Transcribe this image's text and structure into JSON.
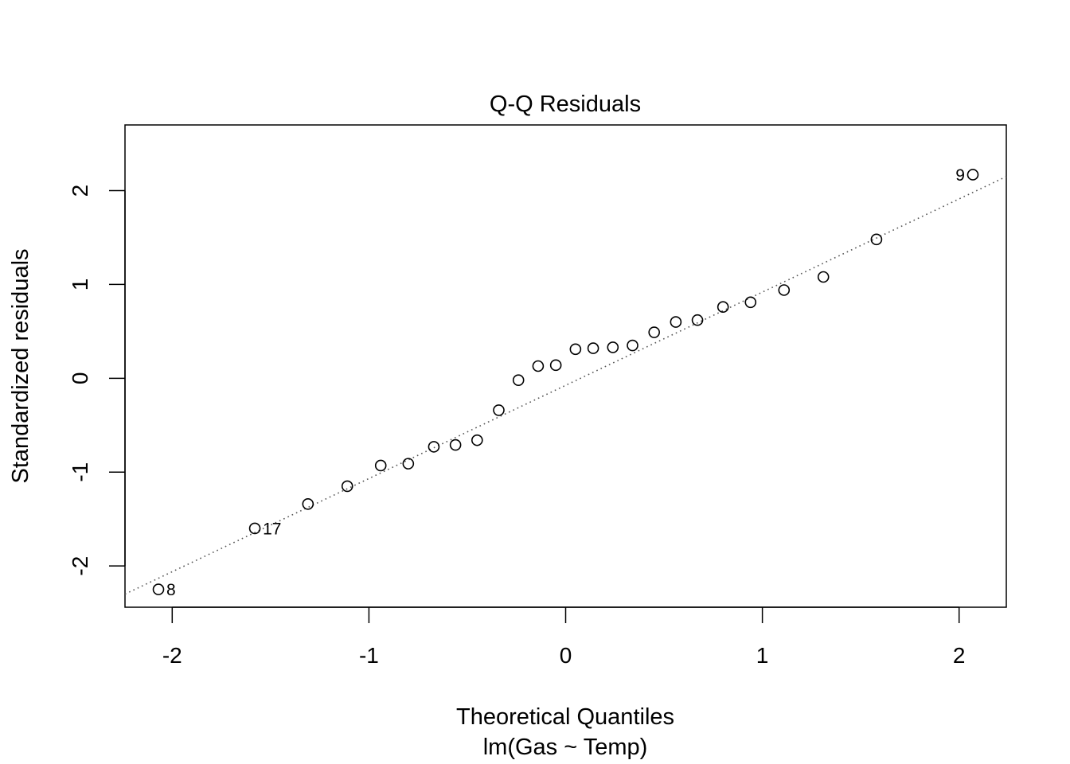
{
  "chart_data": {
    "type": "scatter",
    "title": "Q-Q Residuals",
    "xlabel": "Theoretical Quantiles",
    "subtitle": "lm(Gas ~ Temp)",
    "ylabel": "Standardized residuals",
    "xlim": [
      -2.24,
      2.24
    ],
    "ylim": [
      -2.44,
      2.7
    ],
    "x_ticks": [
      -2,
      -1,
      0,
      1,
      2
    ],
    "x_tick_labels": [
      "-2",
      "-1",
      "0",
      "1",
      "2"
    ],
    "y_ticks": [
      -2,
      -1,
      0,
      1,
      2
    ],
    "y_tick_labels": [
      "-2",
      "-1",
      "0",
      "1",
      "2"
    ],
    "grid": false,
    "reference_line": {
      "style": "dotted",
      "color": "#555555",
      "x": [
        -2.24,
        2.24
      ],
      "y": [
        -2.3,
        2.15
      ]
    },
    "series": [
      {
        "marker": "open-circle",
        "color": "#000000",
        "points": [
          {
            "x": -2.07,
            "y": -2.25,
            "label": "8"
          },
          {
            "x": -1.58,
            "y": -1.6,
            "label": "17"
          },
          {
            "x": -1.31,
            "y": -1.34
          },
          {
            "x": -1.11,
            "y": -1.15
          },
          {
            "x": -0.94,
            "y": -0.93
          },
          {
            "x": -0.8,
            "y": -0.91
          },
          {
            "x": -0.67,
            "y": -0.73
          },
          {
            "x": -0.56,
            "y": -0.71
          },
          {
            "x": -0.45,
            "y": -0.66
          },
          {
            "x": -0.34,
            "y": -0.34
          },
          {
            "x": -0.24,
            "y": -0.02
          },
          {
            "x": -0.14,
            "y": 0.13
          },
          {
            "x": -0.05,
            "y": 0.14
          },
          {
            "x": 0.05,
            "y": 0.31
          },
          {
            "x": 0.14,
            "y": 0.32
          },
          {
            "x": 0.24,
            "y": 0.33
          },
          {
            "x": 0.34,
            "y": 0.35
          },
          {
            "x": 0.45,
            "y": 0.49
          },
          {
            "x": 0.56,
            "y": 0.6
          },
          {
            "x": 0.67,
            "y": 0.62
          },
          {
            "x": 0.8,
            "y": 0.76
          },
          {
            "x": 0.94,
            "y": 0.81
          },
          {
            "x": 1.11,
            "y": 0.94
          },
          {
            "x": 1.31,
            "y": 1.08
          },
          {
            "x": 1.58,
            "y": 1.48
          },
          {
            "x": 2.07,
            "y": 2.17,
            "label": "9"
          }
        ]
      }
    ]
  }
}
